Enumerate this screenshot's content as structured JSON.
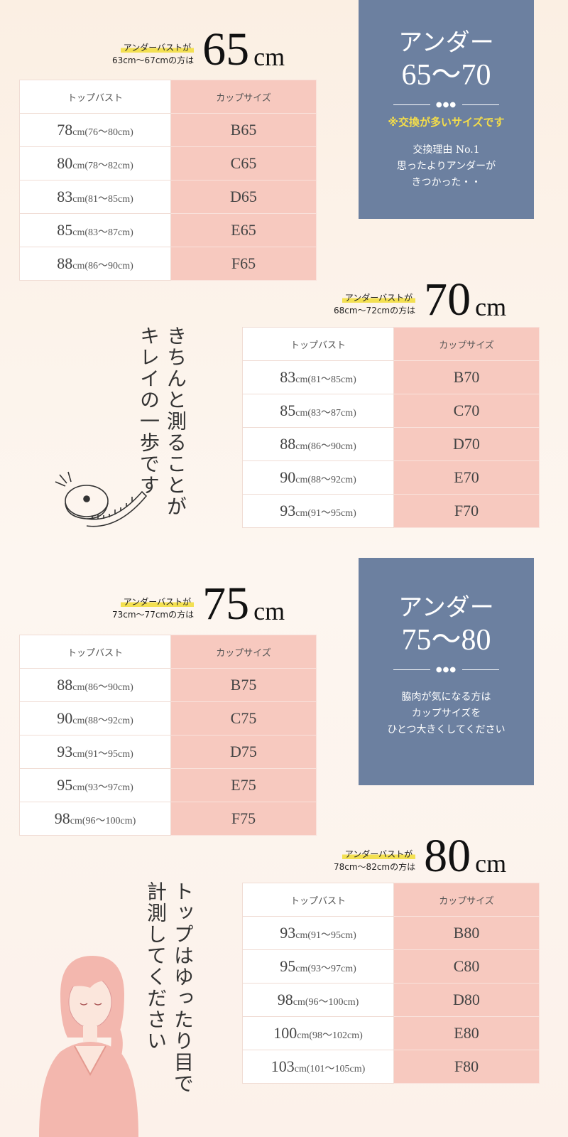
{
  "colors": {
    "info_box": "#6c80a0",
    "cup_cell": "#f7c9bf",
    "highlight": "#f3e052",
    "warning_text": "#f4dd4a"
  },
  "table_headers": {
    "top": "トップバスト",
    "cup": "カップサイズ"
  },
  "sections": [
    {
      "label_line1": "アンダーバストが",
      "label_line2": "63cm〜67cmの方は",
      "size": "65",
      "unit": "cm",
      "rows": [
        {
          "top": "78",
          "range": "cm(76〜80cm)",
          "cup": "B65"
        },
        {
          "top": "80",
          "range": "cm(78〜82cm)",
          "cup": "C65"
        },
        {
          "top": "83",
          "range": "cm(81〜85cm)",
          "cup": "D65"
        },
        {
          "top": "85",
          "range": "cm(83〜87cm)",
          "cup": "E65"
        },
        {
          "top": "88",
          "range": "cm(86〜90cm)",
          "cup": "F65"
        }
      ]
    },
    {
      "label_line1": "アンダーバストが",
      "label_line2": "68cm〜72cmの方は",
      "size": "70",
      "unit": "cm",
      "rows": [
        {
          "top": "83",
          "range": "cm(81〜85cm)",
          "cup": "B70"
        },
        {
          "top": "85",
          "range": "cm(83〜87cm)",
          "cup": "C70"
        },
        {
          "top": "88",
          "range": "cm(86〜90cm)",
          "cup": "D70"
        },
        {
          "top": "90",
          "range": "cm(88〜92cm)",
          "cup": "E70"
        },
        {
          "top": "93",
          "range": "cm(91〜95cm)",
          "cup": "F70"
        }
      ]
    },
    {
      "label_line1": "アンダーバストが",
      "label_line2": "73cm〜77cmの方は",
      "size": "75",
      "unit": "cm",
      "rows": [
        {
          "top": "88",
          "range": "cm(86〜90cm)",
          "cup": "B75"
        },
        {
          "top": "90",
          "range": "cm(88〜92cm)",
          "cup": "C75"
        },
        {
          "top": "93",
          "range": "cm(91〜95cm)",
          "cup": "D75"
        },
        {
          "top": "95",
          "range": "cm(93〜97cm)",
          "cup": "E75"
        },
        {
          "top": "98",
          "range": "cm(96〜100cm)",
          "cup": "F75"
        }
      ]
    },
    {
      "label_line1": "アンダーバストが",
      "label_line2": "78cm〜82cmの方は",
      "size": "80",
      "unit": "cm",
      "rows": [
        {
          "top": "93",
          "range": "cm(91〜95cm)",
          "cup": "B80"
        },
        {
          "top": "95",
          "range": "cm(93〜97cm)",
          "cup": "C80"
        },
        {
          "top": "98",
          "range": "cm(96〜100cm)",
          "cup": "D80"
        },
        {
          "top": "100",
          "range": "cm(98〜102cm)",
          "cup": "E80"
        },
        {
          "top": "103",
          "range": "cm(101〜105cm)",
          "cup": "F80"
        }
      ]
    }
  ],
  "info_boxes": [
    {
      "title": "アンダー",
      "range": "65〜70",
      "warning": "※交換が多いサイズです",
      "note": [
        "交換理由 No.1",
        "思ったよりアンダーが",
        "きつかった・・"
      ]
    },
    {
      "title": "アンダー",
      "range": "75〜80",
      "note": [
        "脇肉が気になる方は",
        "カップサイズを",
        "ひとつ大きくしてください"
      ]
    }
  ],
  "vertical_texts": [
    {
      "col1": "きちんと測ることが",
      "col2": "キレイの一歩です"
    },
    {
      "col1": "トップはゆったり目で",
      "col2": "計測してください"
    }
  ],
  "illustrations": [
    "tape-measure-icon",
    "woman-illustration"
  ]
}
